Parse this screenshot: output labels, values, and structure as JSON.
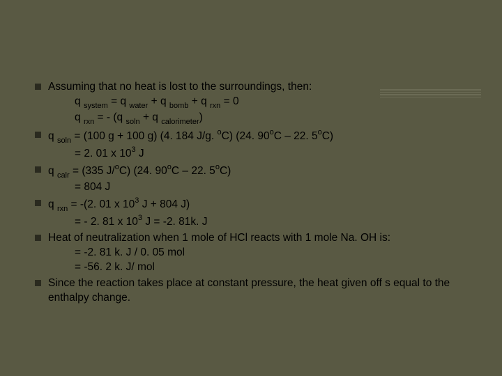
{
  "colors": {
    "background": "#595943",
    "bullet": "#2a2a1f",
    "text": "#000000",
    "decoration": "#6b6b55"
  },
  "typography": {
    "font_family": "Arial, sans-serif",
    "body_fontsize": 15.5,
    "sub_fontsize": 11,
    "sup_fontsize": 11
  },
  "bullets": [
    {
      "main": "Assuming that no heat is lost to the surroundings, then:",
      "sub_lines": [
        [
          {
            "t": "q "
          },
          {
            "t": "system",
            "sub": true
          },
          {
            "t": " = q "
          },
          {
            "t": "water",
            "sub": true
          },
          {
            "t": " + q "
          },
          {
            "t": "bomb",
            "sub": true
          },
          {
            "t": " + q "
          },
          {
            "t": "rxn",
            "sub": true
          },
          {
            "t": " = 0"
          }
        ],
        [
          {
            "t": "q "
          },
          {
            "t": "rxn",
            "sub": true
          },
          {
            "t": " = - (q "
          },
          {
            "t": "soln",
            "sub": true
          },
          {
            "t": " + q "
          },
          {
            "t": "calorimeter",
            "sub": true
          },
          {
            "t": ")"
          }
        ]
      ]
    },
    {
      "main_parts": [
        {
          "t": "q "
        },
        {
          "t": "soln",
          "sub": true
        },
        {
          "t": " = (100 g + 100 g) (4. 184 J/g. "
        },
        {
          "t": "o",
          "sup": true
        },
        {
          "t": "C) (24. 90"
        },
        {
          "t": "o",
          "sup": true
        },
        {
          "t": "C –  22. 5"
        },
        {
          "t": "o",
          "sup": true
        },
        {
          "t": "C)"
        }
      ],
      "sub_lines": [
        [
          {
            "t": "= 2. 01 x 10"
          },
          {
            "t": "3",
            "sup": true
          },
          {
            "t": " J"
          }
        ]
      ]
    },
    {
      "main_parts": [
        {
          "t": "q "
        },
        {
          "t": "calr",
          "sub": true
        },
        {
          "t": " = (335 J/"
        },
        {
          "t": "o",
          "sup": true
        },
        {
          "t": "C) (24. 90"
        },
        {
          "t": "o",
          "sup": true
        },
        {
          "t": "C –  22. 5"
        },
        {
          "t": "o",
          "sup": true
        },
        {
          "t": "C)"
        }
      ],
      "sub_lines": [
        [
          {
            "t": "= 804 J"
          }
        ]
      ]
    },
    {
      "main_parts": [
        {
          "t": "q "
        },
        {
          "t": "rxn",
          "sub": true
        },
        {
          "t": " = -(2. 01 x 10"
        },
        {
          "t": "3",
          "sup": true
        },
        {
          "t": " J + 804 J)"
        }
      ],
      "sub_lines": [
        [
          {
            "t": "= - 2. 81 x 10"
          },
          {
            "t": "3",
            "sup": true
          },
          {
            "t": " J = -2. 81k. J"
          }
        ]
      ]
    },
    {
      "main": "Heat of neutralization when 1 mole of HCl reacts with 1 mole Na. OH is:",
      "sub_lines": [
        [
          {
            "t": "= -2. 81 k. J / 0. 05 mol"
          }
        ],
        [
          {
            "t": "= -56. 2 k. J/ mol"
          }
        ]
      ]
    },
    {
      "main": "Since the reaction takes place at constant pressure, the heat given off s equal to the enthalpy change."
    }
  ]
}
